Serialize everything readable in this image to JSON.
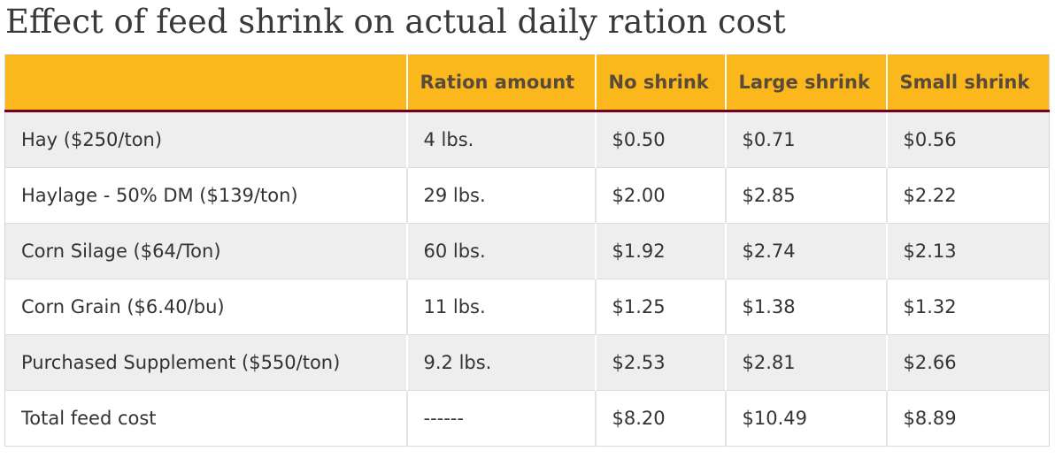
{
  "title": "Effect of feed shrink on actual daily ration cost",
  "table": {
    "headers": [
      "",
      "Ration amount",
      "No shrink",
      "Large shrink",
      "Small shrink"
    ],
    "rows": [
      [
        "Hay ($250/ton)",
        "4 lbs.",
        "$0.50",
        "$0.71",
        "$0.56"
      ],
      [
        "Haylage - 50% DM ($139/ton)",
        "29 lbs.",
        "$2.00",
        "$2.85",
        "$2.22"
      ],
      [
        "Corn Silage ($64/Ton)",
        "60 lbs.",
        "$1.92",
        "$2.74",
        "$2.13"
      ],
      [
        "Corn Grain ($6.40/bu)",
        "11 lbs.",
        "$1.25",
        "$1.38",
        "$1.32"
      ],
      [
        "Purchased Supplement ($550/ton)",
        "9.2 lbs.",
        "$2.53",
        "$2.81",
        "$2.66"
      ],
      [
        "Total feed cost",
        "------",
        "$8.20",
        "$10.49",
        "$8.89"
      ]
    ]
  },
  "colors": {
    "header_background": "#fbb81c",
    "header_rule": "#7a0019",
    "striped_row": "#eeeeee"
  }
}
